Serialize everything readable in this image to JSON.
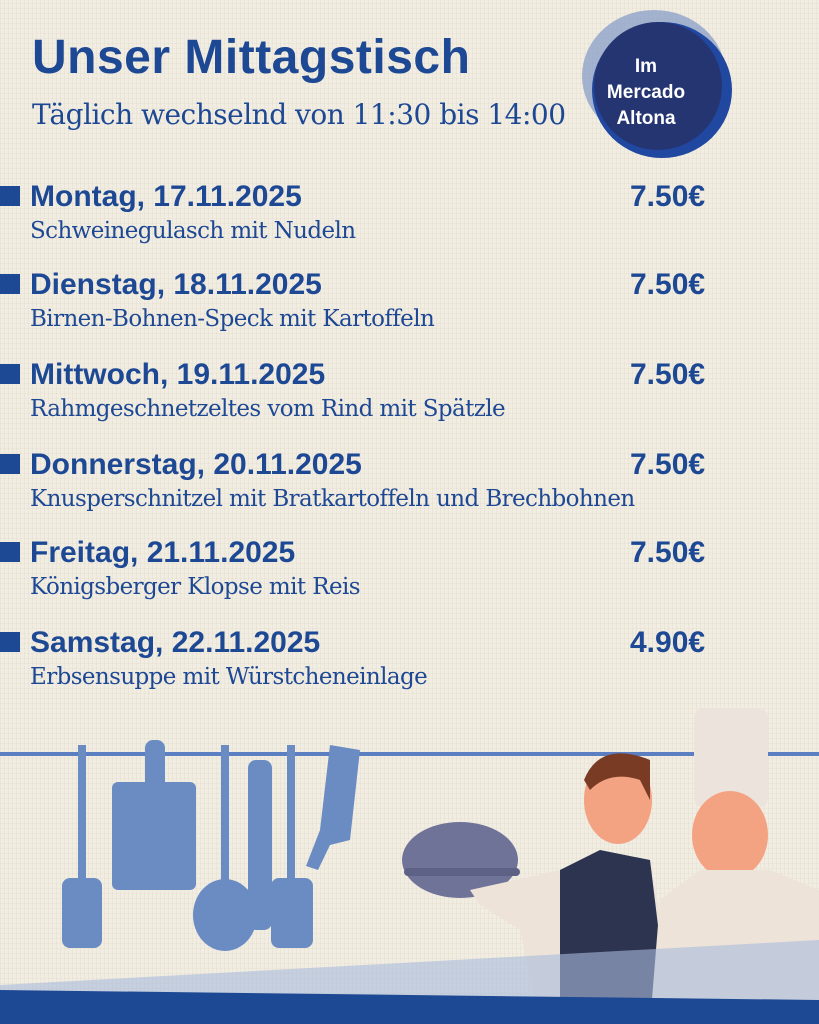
{
  "header": {
    "title": "Unser Mittagstisch",
    "subtitle": "Täglich wechselnd von 11:30 bis 14:00"
  },
  "badge": {
    "line1": "Im",
    "line2": "Mercado",
    "line3": "Altona"
  },
  "colors": {
    "primary": "#1d4894",
    "badge_dark": "#243572",
    "utensils": "#6a8cc3"
  },
  "menu": [
    {
      "day": "Montag, 17.11.2025",
      "dish": "Schweinegulasch mit Nudeln",
      "price": "7.50€"
    },
    {
      "day": "Dienstag, 18.11.2025",
      "dish": "Birnen-Bohnen-Speck mit Kartoffeln",
      "price": "7.50€"
    },
    {
      "day": "Mittwoch, 19.11.2025",
      "dish": "Rahmgeschnetzeltes vom Rind mit Spätzle",
      "price": "7.50€"
    },
    {
      "day": "Donnerstag, 20.11.2025",
      "dish": "Knusperschnitzel mit Bratkartoffeln und Brechbohnen",
      "price": "7.50€"
    },
    {
      "day": "Freitag, 21.11.2025",
      "dish": "Königsberger Klopse mit Reis",
      "price": "7.50€"
    },
    {
      "day": "Samstag, 22.11.2025",
      "dish": "Erbsensuppe mit Würstcheneinlage",
      "price": "4.90€"
    }
  ]
}
